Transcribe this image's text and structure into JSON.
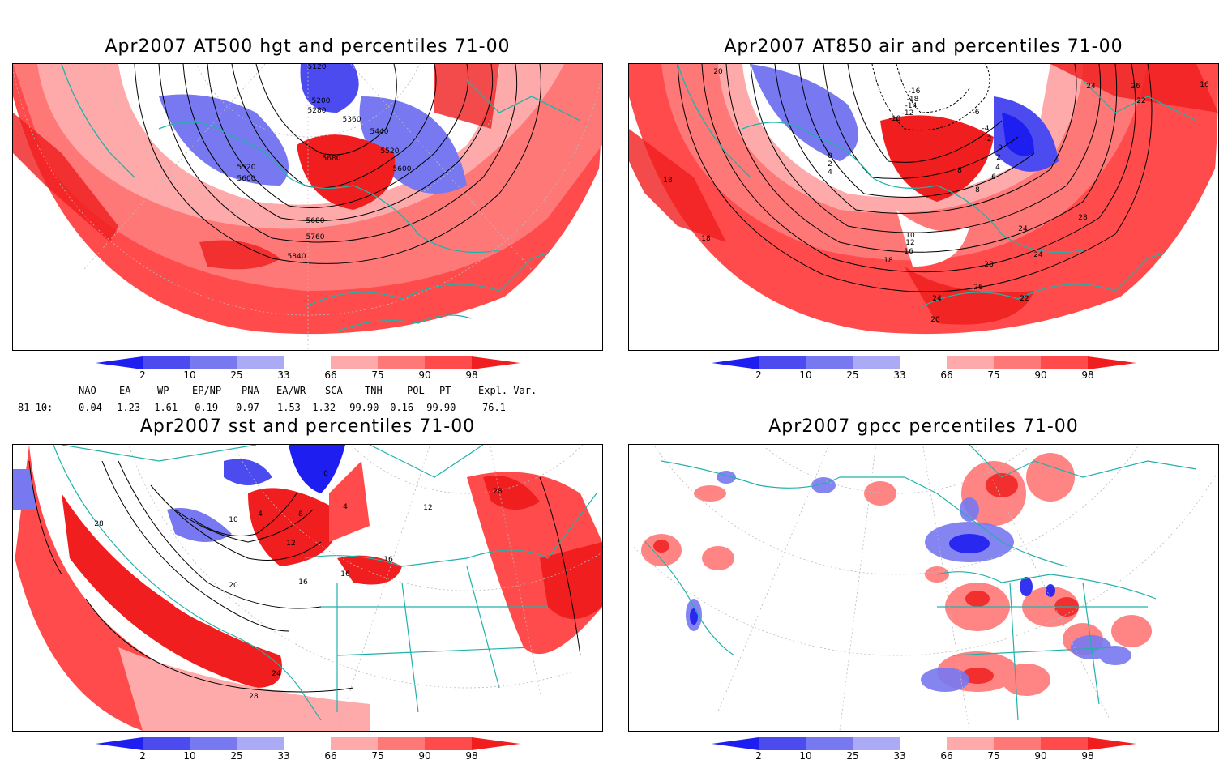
{
  "panels": [
    {
      "title": "Apr2007 AT500 hgt and percentiles 71-00",
      "contour_labels": [
        "5120",
        "5200",
        "5280",
        "5360",
        "5440",
        "5520",
        "5600",
        "5520",
        "5600",
        "5680",
        "5680",
        "5760",
        "5840"
      ]
    },
    {
      "title": "Apr2007 AT850 air and percentiles 71-00",
      "contour_labels": [
        "20",
        "-16",
        "-18",
        "-14",
        "-12",
        "-10",
        "-6",
        "-4",
        "-2",
        "0",
        "0",
        "2",
        "4",
        "2",
        "4",
        "6",
        "8",
        "8",
        "10",
        "12",
        "16",
        "18",
        "18",
        "18",
        "20",
        "22",
        "22",
        "24",
        "24",
        "24",
        "26",
        "26",
        "28",
        "28",
        "24",
        "16"
      ]
    },
    {
      "title": "Apr2007 sst and percentiles 71-00",
      "contour_labels": [
        "0",
        "4",
        "8",
        "10",
        "12",
        "16",
        "16",
        "16",
        "12",
        "20",
        "24",
        "28",
        "28",
        "28",
        "4"
      ]
    },
    {
      "title": "Apr2007 gpcc percentiles 71-00",
      "contour_labels": []
    }
  ],
  "colorbar": {
    "labels": [
      "2",
      "10",
      "25",
      "33",
      "66",
      "75",
      "90",
      "98"
    ],
    "colors": [
      "#1e1ef0",
      "#4b4bf0",
      "#7878f0",
      "#aaaaf5",
      "#ffffff",
      "#ffaaaa",
      "#ff7878",
      "#ff4b4b",
      "#f01e1e"
    ]
  },
  "teleconnections": {
    "headers": [
      "NAO",
      "EA",
      "WP",
      "EP/NP",
      "PNA",
      "EA/WR",
      "SCA",
      "TNH",
      "POL",
      "PT",
      "Expl. Var."
    ],
    "row_label": "81-10:",
    "values": [
      "0.04",
      "-1.23",
      "-1.61",
      "-0.19",
      "0.97",
      "1.53",
      "-1.32",
      "-99.90",
      "-0.16",
      "-99.90",
      "76.1"
    ]
  }
}
